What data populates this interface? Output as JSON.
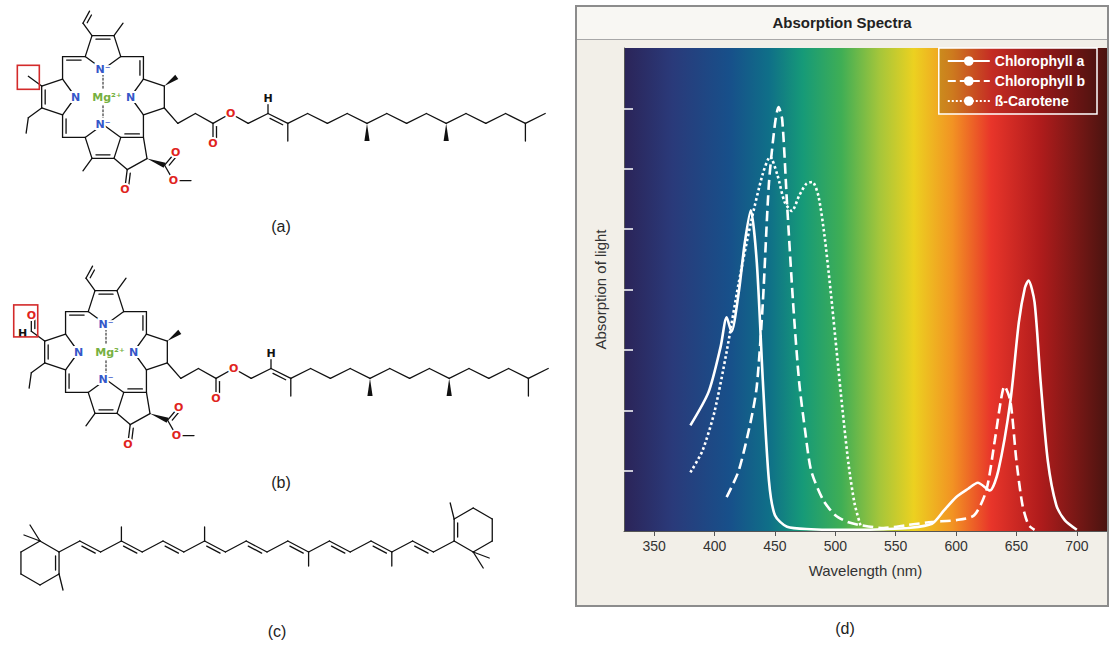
{
  "chart_data": {
    "type": "line",
    "title": "Absorption Spectra",
    "caption": "(d)",
    "x_label": "Wavelength (nm)",
    "y_label": "Absorption of light",
    "xlim": [
      325,
      725
    ],
    "xticks": [
      350,
      400,
      450,
      500,
      550,
      600,
      650,
      700
    ],
    "ylim": [
      0,
      8
    ],
    "yticks": [
      1,
      2,
      3,
      4,
      5,
      6,
      7
    ],
    "grid": false,
    "legend": "upper right",
    "tick_labels": "x",
    "series": [
      {
        "name": "Chlorophyll a",
        "color": "#ffffff",
        "line_style": "solid",
        "x": [
          380,
          395,
          405,
          410,
          414,
          420,
          425,
          430,
          435,
          440,
          445,
          450,
          460,
          480,
          500,
          520,
          540,
          560,
          580,
          590,
          600,
          610,
          618,
          628,
          635,
          645,
          652,
          657,
          660,
          665,
          670,
          676,
          683,
          690,
          700
        ],
        "values": [
          1.75,
          2.3,
          3.05,
          3.54,
          3.3,
          3.95,
          4.77,
          5.31,
          4.44,
          2.48,
          0.84,
          0.26,
          0.07,
          0.03,
          0.02,
          0.02,
          0.03,
          0.05,
          0.12,
          0.34,
          0.56,
          0.7,
          0.8,
          0.67,
          1.0,
          2.15,
          3.46,
          4.03,
          4.15,
          3.79,
          2.48,
          1.16,
          0.43,
          0.18,
          0.02
        ]
      },
      {
        "name": "Chlorophyll b",
        "color": "#ffffff",
        "line_style": "dashed",
        "x": [
          410,
          420,
          430,
          435,
          440,
          445,
          450,
          453,
          456,
          460,
          465,
          470,
          475,
          480,
          490,
          500,
          510,
          520,
          540,
          560,
          580,
          600,
          615,
          625,
          632,
          637,
          640,
          645,
          650,
          655,
          660,
          665
        ],
        "values": [
          0.56,
          1.0,
          1.82,
          2.4,
          3.79,
          5.75,
          6.74,
          7.02,
          6.82,
          5.43,
          3.79,
          2.48,
          1.66,
          1.0,
          0.51,
          0.26,
          0.15,
          0.1,
          0.05,
          0.1,
          0.15,
          0.18,
          0.26,
          0.67,
          1.49,
          2.15,
          2.4,
          2.15,
          1.16,
          0.43,
          0.1,
          0.02
        ]
      },
      {
        "name": "ß-Carotene",
        "color": "#ffffff",
        "line_style": "dotted",
        "x": [
          380,
          390,
          400,
          410,
          420,
          430,
          440,
          446,
          452,
          458,
          464,
          470,
          476,
          481,
          486,
          491,
          496,
          501,
          506,
          511,
          516,
          521
        ],
        "values": [
          0.97,
          1.33,
          1.98,
          2.97,
          4.11,
          5.1,
          5.92,
          6.2,
          5.9,
          5.45,
          5.3,
          5.55,
          5.75,
          5.78,
          5.55,
          4.9,
          4.0,
          3.0,
          2.0,
          1.1,
          0.45,
          0.08
        ]
      }
    ]
  },
  "structures": {
    "a": {
      "caption": "(a)",
      "atoms": {
        "nitrogen": "N",
        "nitrogen_anion": "N⁻",
        "metal": "Mg²⁺",
        "oxygen": "O",
        "hydrogen": "H"
      }
    },
    "b": {
      "caption": "(b)",
      "atoms": {
        "nitrogen": "N",
        "nitrogen_anion": "N⁻",
        "metal": "Mg²⁺",
        "oxygen": "O",
        "hydrogen": "H"
      },
      "highlight": {
        "oxygen": "O",
        "hydrogen": "H"
      }
    },
    "c": {
      "caption": "(c)"
    }
  }
}
